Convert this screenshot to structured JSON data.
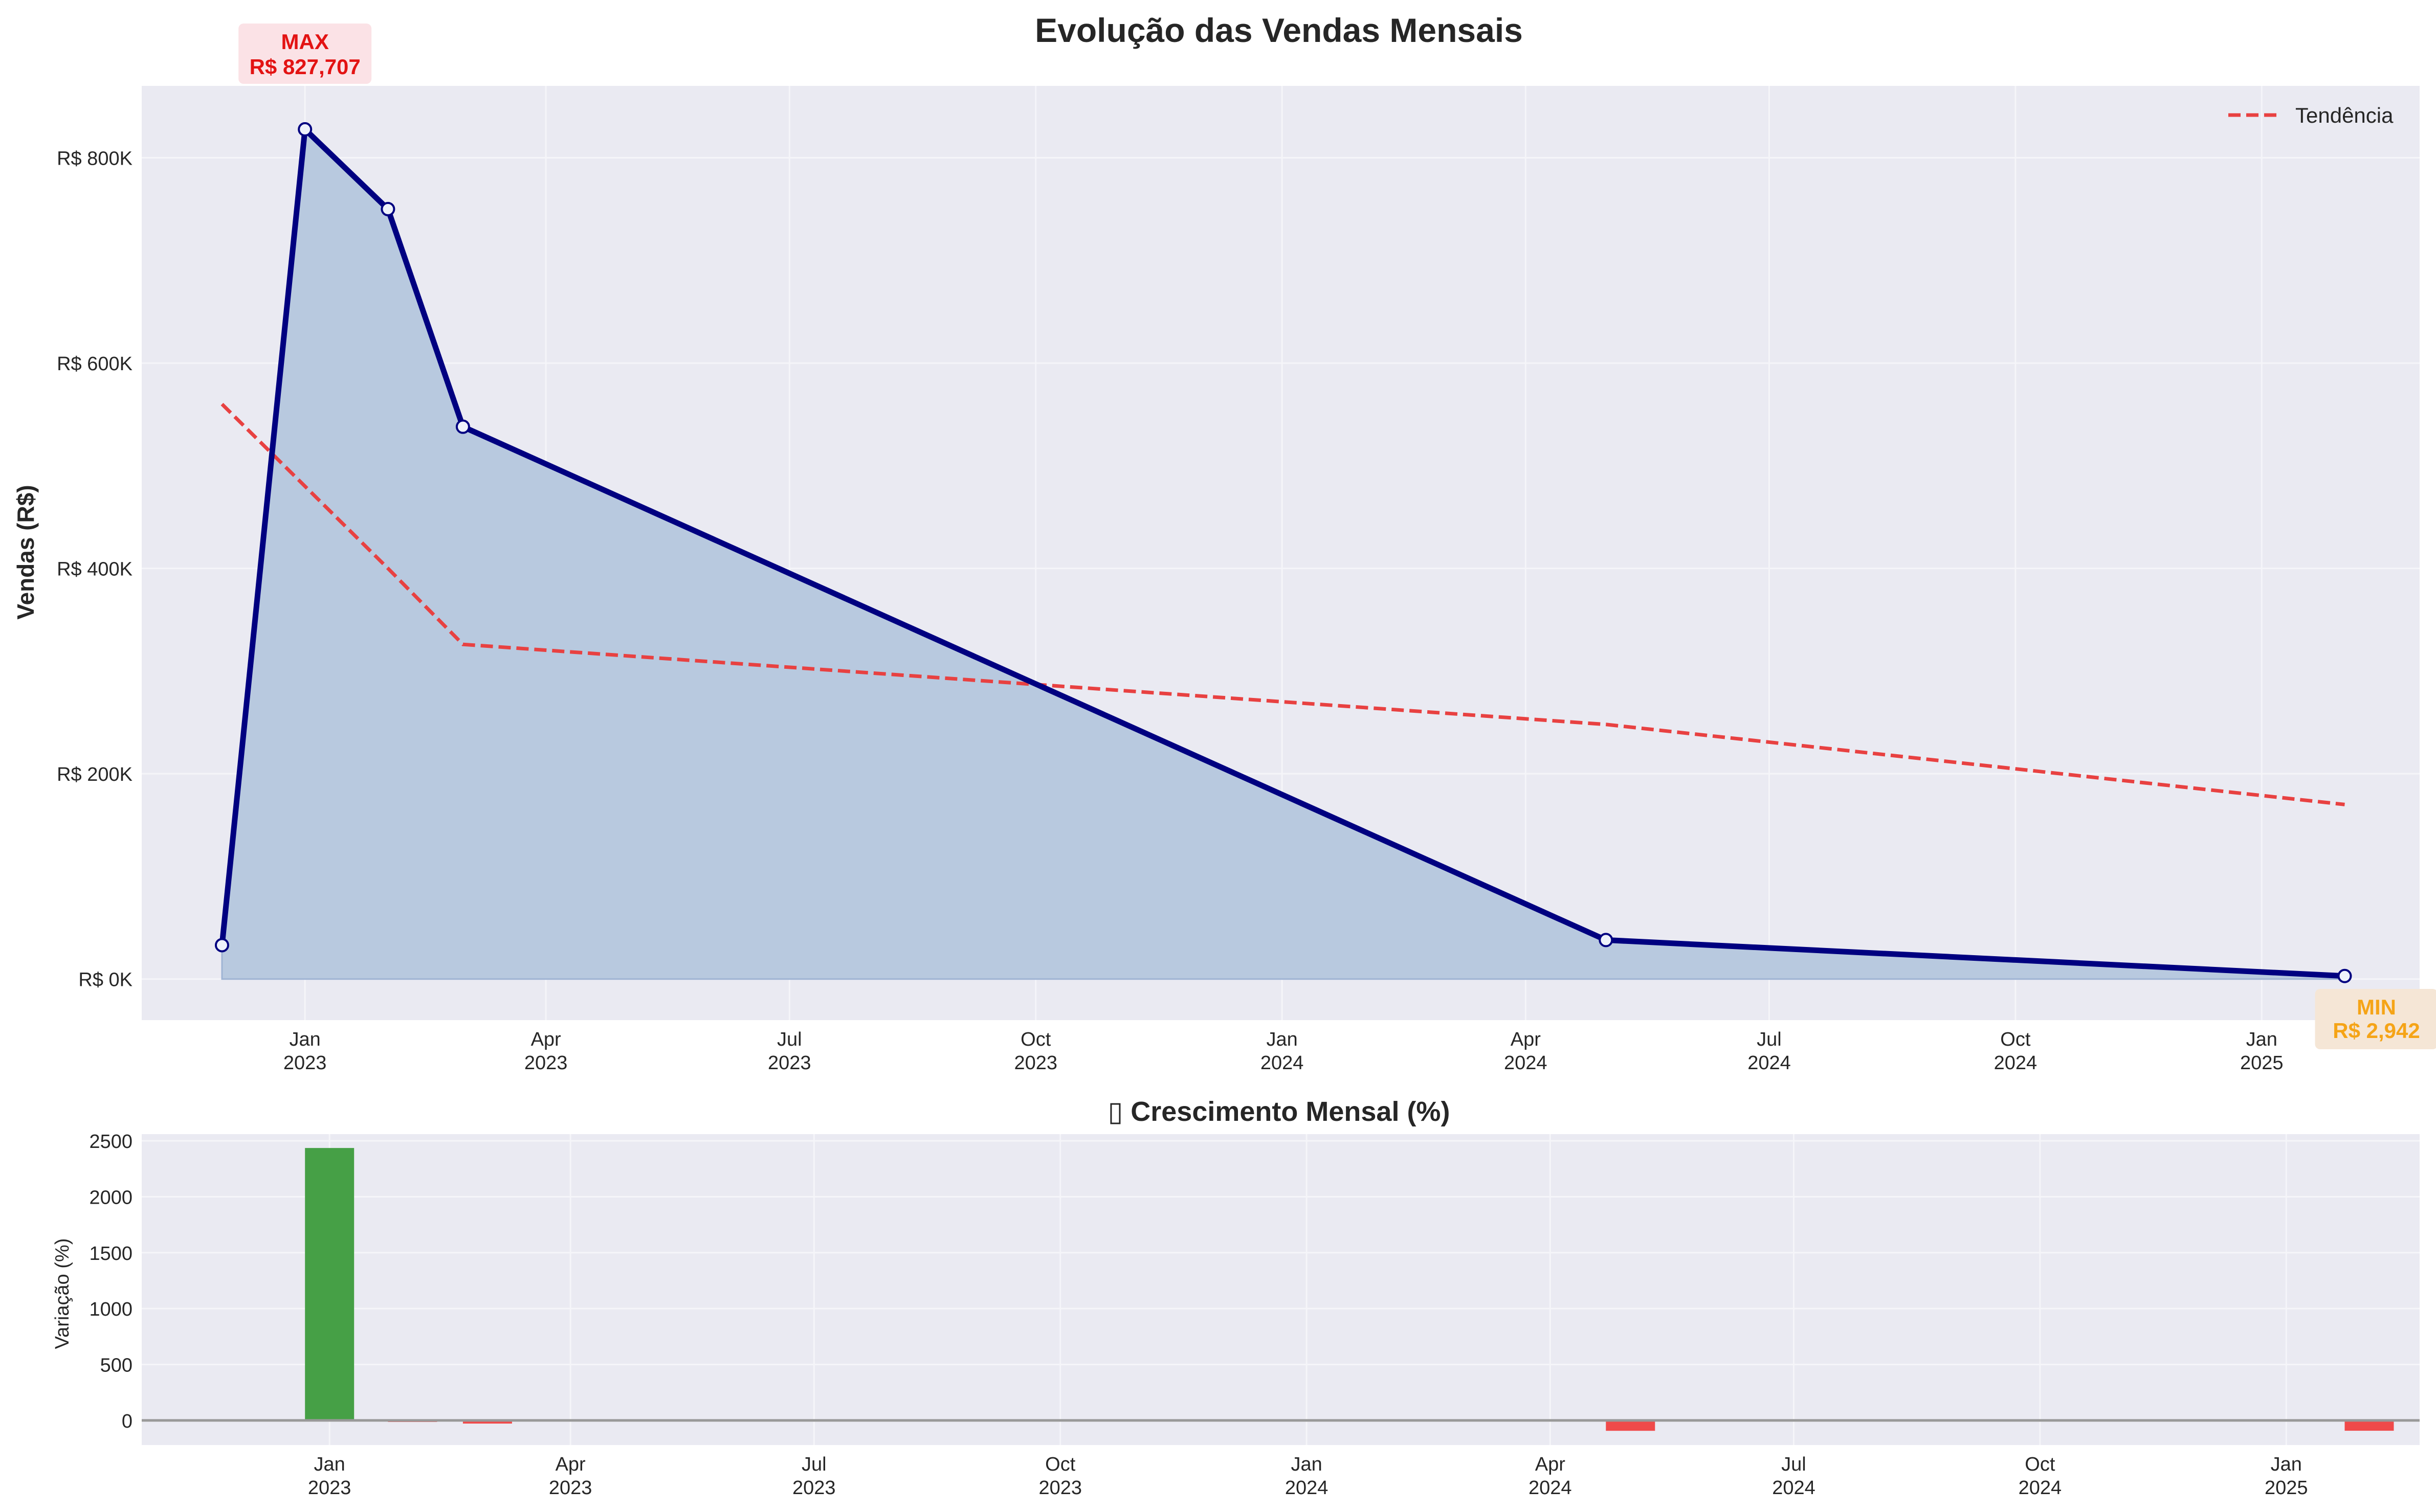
{
  "colors": {
    "panel_bg": "#EAEAF2",
    "grid": "#F5F5F9",
    "main_line": "#000080",
    "area_fill": "#B8C9DF",
    "trend": "#E84141",
    "positive_bar": "#46A046",
    "negative_bar": "#F04A4A",
    "max_label": "#E31313",
    "max_box": "#FBE2E6",
    "min_label": "#F5A417",
    "min_box": "#F5E6D6",
    "zero_line": "#999999"
  },
  "chart_data": [
    {
      "type": "area",
      "title": "Evolução das Vendas Mensais",
      "ylabel": "Vendas (R$)",
      "xlabel": "",
      "x": [
        "2022-12-01",
        "2023-01-01",
        "2023-02-01",
        "2023-03-01",
        "2024-05-01",
        "2025-02-01"
      ],
      "xlim": [
        "2022-11-01",
        "2025-03-01"
      ],
      "ylim": [
        -40000,
        870000
      ],
      "yticks": [
        0,
        200000,
        400000,
        600000,
        800000
      ],
      "ytick_labels": [
        "R$ 0K",
        "R$ 200K",
        "R$ 400K",
        "R$ 600K",
        "R$ 800K"
      ],
      "xticks": [
        "2023-01-01",
        "2023-04-01",
        "2023-07-01",
        "2023-10-01",
        "2024-01-01",
        "2024-04-01",
        "2024-07-01",
        "2024-10-01",
        "2025-01-01"
      ],
      "xtick_labels": [
        [
          "Jan",
          "2023"
        ],
        [
          "Apr",
          "2023"
        ],
        [
          "Jul",
          "2023"
        ],
        [
          "Oct",
          "2023"
        ],
        [
          "Jan",
          "2024"
        ],
        [
          "Apr",
          "2024"
        ],
        [
          "Jul",
          "2024"
        ],
        [
          "Oct",
          "2024"
        ],
        [
          "Jan",
          "2025"
        ]
      ],
      "grid": true,
      "legend_position": "top-right",
      "series": [
        {
          "values": [
            33000,
            827707,
            750000,
            538000,
            38000,
            2942
          ]
        },
        {
          "name": "Tendência",
          "style": "dashed",
          "values": [
            560000,
            480000,
            400000,
            326000,
            248000,
            170000
          ]
        }
      ],
      "annotations": [
        {
          "kind": "max",
          "x": "2023-01-01",
          "y": 827707,
          "line1": "MAX",
          "line2": "R$ 827,707"
        },
        {
          "kind": "min",
          "x": "2025-02-01",
          "y": 2942,
          "line1": "MIN",
          "line2": "R$ 2,942"
        }
      ]
    },
    {
      "type": "bar",
      "title": "▯ Crescimento Mensal (%)",
      "ylabel": "Variação (%)",
      "xlabel": "",
      "x": [
        "2022-12-01",
        "2023-01-01",
        "2023-02-01",
        "2023-03-01",
        "2024-05-01",
        "2025-02-01"
      ],
      "values": [
        0,
        2436,
        -9.4,
        -28.3,
        -92.9,
        -92.3
      ],
      "xlim": [
        "2022-11-01",
        "2025-03-01"
      ],
      "ylim": [
        -220,
        2560
      ],
      "yticks": [
        0,
        500,
        1000,
        1500,
        2000,
        2500
      ],
      "ytick_labels": [
        "0",
        "500",
        "1000",
        "1500",
        "2000",
        "2500"
      ],
      "xticks": [
        "2023-01-01",
        "2023-04-01",
        "2023-07-01",
        "2023-10-01",
        "2024-01-01",
        "2024-04-01",
        "2024-07-01",
        "2024-10-01",
        "2025-01-01"
      ],
      "xtick_labels": [
        [
          "Jan",
          "2023"
        ],
        [
          "Apr",
          "2023"
        ],
        [
          "Jul",
          "2023"
        ],
        [
          "Oct",
          "2023"
        ],
        [
          "Jan",
          "2024"
        ],
        [
          "Apr",
          "2024"
        ],
        [
          "Jul",
          "2024"
        ],
        [
          "Oct",
          "2024"
        ],
        [
          "Jan",
          "2025"
        ]
      ],
      "grid": true
    }
  ]
}
